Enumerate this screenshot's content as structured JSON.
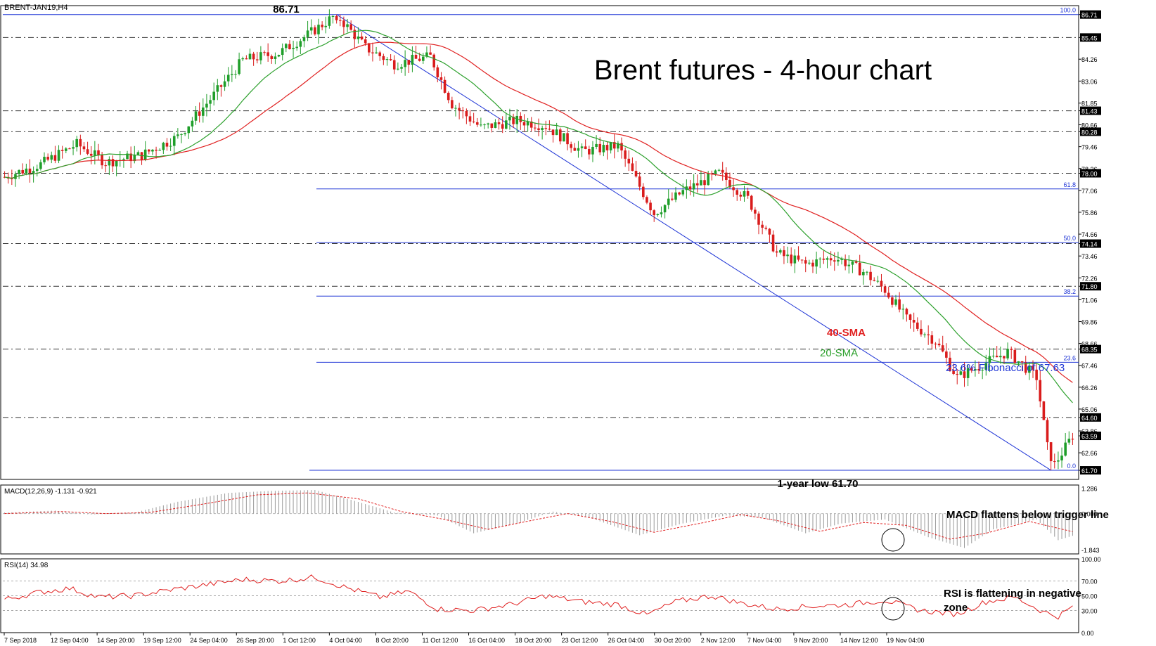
{
  "symbol_label": "BRENT-JAN19,H4",
  "title": "Brent futures - 4-hour chart",
  "annotations": {
    "high": "86.71",
    "low": "1-year low 61.70",
    "sma40": "40-SMA",
    "sma20": "20-SMA",
    "fib236": "23.6% Fibonacci of 67.63",
    "macd_note": "MACD flattens below trigger line",
    "rsi_note_1": "RSI is flattening in negative",
    "rsi_note_2": "zone"
  },
  "colors": {
    "up": "#1f9e2a",
    "down": "#d91c1c",
    "sma20": "#2ca02c",
    "sma40": "#e02020",
    "fib": "#1f35d6",
    "grid": "#333333",
    "macd_hist": "#9a9a9a",
    "macd_signal": "#e02020",
    "rsi": "#e02020",
    "label_box": "#000000"
  },
  "chart_data": [
    {
      "type": "candlestick",
      "title": "Brent futures - 4-hour chart",
      "price_axis": [
        "86.71",
        "85.45",
        "84.26",
        "83.06",
        "81.85",
        "81.43",
        "80.66",
        "80.28",
        "79.46",
        "78.26",
        "78.00",
        "77.06",
        "75.86",
        "74.66",
        "74.14",
        "73.46",
        "72.26",
        "71.80",
        "71.06",
        "69.86",
        "68.66",
        "68.35",
        "67.46",
        "66.26",
        "65.06",
        "64.60",
        "63.86",
        "63.59",
        "62.66",
        "61.70"
      ],
      "price_boxed": [
        "86.71",
        "85.45",
        "81.43",
        "80.28",
        "78.00",
        "74.14",
        "71.80",
        "68.35",
        "64.60",
        "63.59",
        "61.70"
      ],
      "ylim": [
        61.2,
        87.2
      ],
      "horizontal_levels": [
        85.45,
        81.43,
        80.28,
        78.0,
        74.14,
        71.8,
        68.35,
        64.6
      ],
      "fibonacci": [
        {
          "label": "100.0",
          "value": 86.71
        },
        {
          "label": "61.8",
          "value": 77.14
        },
        {
          "label": "50.0",
          "value": 74.2
        },
        {
          "label": "38.2",
          "value": 71.26
        },
        {
          "label": "23.6",
          "value": 67.63
        },
        {
          "label": "0.0",
          "value": 61.7
        }
      ],
      "x_labels": [
        "7 Sep 2018",
        "12 Sep 04:00",
        "14 Sep 20:00",
        "19 Sep 12:00",
        "24 Sep 04:00",
        "26 Sep 20:00",
        "1 Oct 12:00",
        "4 Oct 04:00",
        "8 Oct 20:00",
        "11 Oct 12:00",
        "16 Oct 04:00",
        "18 Oct 20:00",
        "23 Oct 12:00",
        "26 Oct 04:00",
        "30 Oct 20:00",
        "2 Nov 12:00",
        "7 Nov 04:00",
        "9 Nov 20:00",
        "14 Nov 12:00",
        "19 Nov 04:00"
      ],
      "price_path": [
        [
          0,
          77.8
        ],
        [
          10,
          78.5
        ],
        [
          20,
          79.6
        ],
        [
          28,
          78.6
        ],
        [
          38,
          79.0
        ],
        [
          48,
          80.0
        ],
        [
          58,
          82.3
        ],
        [
          66,
          84.2
        ],
        [
          76,
          84.6
        ],
        [
          84,
          85.6
        ],
        [
          92,
          86.71
        ],
        [
          100,
          84.9
        ],
        [
          108,
          84.0
        ],
        [
          118,
          84.4
        ],
        [
          124,
          81.8
        ],
        [
          132,
          80.5
        ],
        [
          142,
          80.9
        ],
        [
          150,
          80.6
        ],
        [
          160,
          79.2
        ],
        [
          170,
          79.5
        ],
        [
          180,
          75.8
        ],
        [
          188,
          77.0
        ],
        [
          198,
          78.0
        ],
        [
          206,
          76.6
        ],
        [
          214,
          73.6
        ],
        [
          222,
          73.0
        ],
        [
          230,
          73.4
        ],
        [
          238,
          72.6
        ],
        [
          244,
          71.6
        ],
        [
          250,
          70.0
        ],
        [
          258,
          68.8
        ],
        [
          264,
          66.8
        ],
        [
          272,
          67.6
        ],
        [
          278,
          68.2
        ],
        [
          286,
          66.8
        ],
        [
          290,
          61.7
        ],
        [
          296,
          63.6
        ]
      ],
      "series": [
        {
          "name": "20-SMA"
        },
        {
          "name": "40-SMA"
        }
      ]
    },
    {
      "type": "bar",
      "label": "MACD(12,26,9) -1.131 -0.921",
      "axis": [
        "1.286",
        "0.000",
        "-1.843"
      ],
      "ylim": [
        -2.05,
        1.45
      ],
      "hist_path": [
        [
          0,
          0.05
        ],
        [
          14,
          0.15
        ],
        [
          24,
          -0.05
        ],
        [
          36,
          0.05
        ],
        [
          48,
          0.6
        ],
        [
          62,
          1.05
        ],
        [
          74,
          1.15
        ],
        [
          86,
          1.2
        ],
        [
          96,
          0.7
        ],
        [
          108,
          0.05
        ],
        [
          120,
          -0.1
        ],
        [
          130,
          -1.0
        ],
        [
          142,
          -0.5
        ],
        [
          152,
          0.1
        ],
        [
          162,
          -0.2
        ],
        [
          176,
          -1.1
        ],
        [
          188,
          -0.5
        ],
        [
          200,
          -0.1
        ],
        [
          210,
          -0.2
        ],
        [
          222,
          -1.0
        ],
        [
          232,
          -0.5
        ],
        [
          244,
          -0.3
        ],
        [
          256,
          -1.2
        ],
        [
          266,
          -1.75
        ],
        [
          274,
          -0.8
        ],
        [
          286,
          -0.3
        ],
        [
          292,
          -1.35
        ],
        [
          296,
          -1.13
        ]
      ],
      "signal_path": [
        [
          0,
          0.0
        ],
        [
          16,
          0.1
        ],
        [
          28,
          0.0
        ],
        [
          40,
          0.05
        ],
        [
          54,
          0.45
        ],
        [
          70,
          0.95
        ],
        [
          84,
          1.05
        ],
        [
          98,
          0.75
        ],
        [
          110,
          0.1
        ],
        [
          122,
          -0.3
        ],
        [
          134,
          -0.8
        ],
        [
          146,
          -0.35
        ],
        [
          156,
          0.0
        ],
        [
          168,
          -0.4
        ],
        [
          180,
          -0.95
        ],
        [
          194,
          -0.45
        ],
        [
          204,
          -0.05
        ],
        [
          214,
          -0.35
        ],
        [
          226,
          -0.9
        ],
        [
          238,
          -0.45
        ],
        [
          250,
          -0.6
        ],
        [
          262,
          -1.3
        ],
        [
          272,
          -1.0
        ],
        [
          284,
          -0.4
        ],
        [
          296,
          -0.92
        ]
      ]
    },
    {
      "type": "line",
      "label": "RSI(14) 34.98",
      "axis": [
        "100.00",
        "70.00",
        "50.00",
        "30.00",
        "0.00"
      ],
      "ylim": [
        0,
        100
      ],
      "levels": [
        70,
        50,
        30
      ],
      "values_path": [
        [
          0,
          45
        ],
        [
          10,
          55
        ],
        [
          18,
          60
        ],
        [
          26,
          48
        ],
        [
          36,
          50
        ],
        [
          46,
          58
        ],
        [
          56,
          65
        ],
        [
          66,
          72
        ],
        [
          76,
          70
        ],
        [
          86,
          75
        ],
        [
          94,
          62
        ],
        [
          104,
          48
        ],
        [
          112,
          56
        ],
        [
          120,
          32
        ],
        [
          130,
          30
        ],
        [
          140,
          38
        ],
        [
          150,
          50
        ],
        [
          160,
          42
        ],
        [
          170,
          38
        ],
        [
          178,
          24
        ],
        [
          186,
          42
        ],
        [
          196,
          50
        ],
        [
          204,
          40
        ],
        [
          214,
          32
        ],
        [
          224,
          36
        ],
        [
          234,
          38
        ],
        [
          244,
          44
        ],
        [
          254,
          30
        ],
        [
          264,
          25
        ],
        [
          272,
          42
        ],
        [
          280,
          48
        ],
        [
          288,
          28
        ],
        [
          292,
          22
        ],
        [
          296,
          35
        ]
      ]
    }
  ]
}
